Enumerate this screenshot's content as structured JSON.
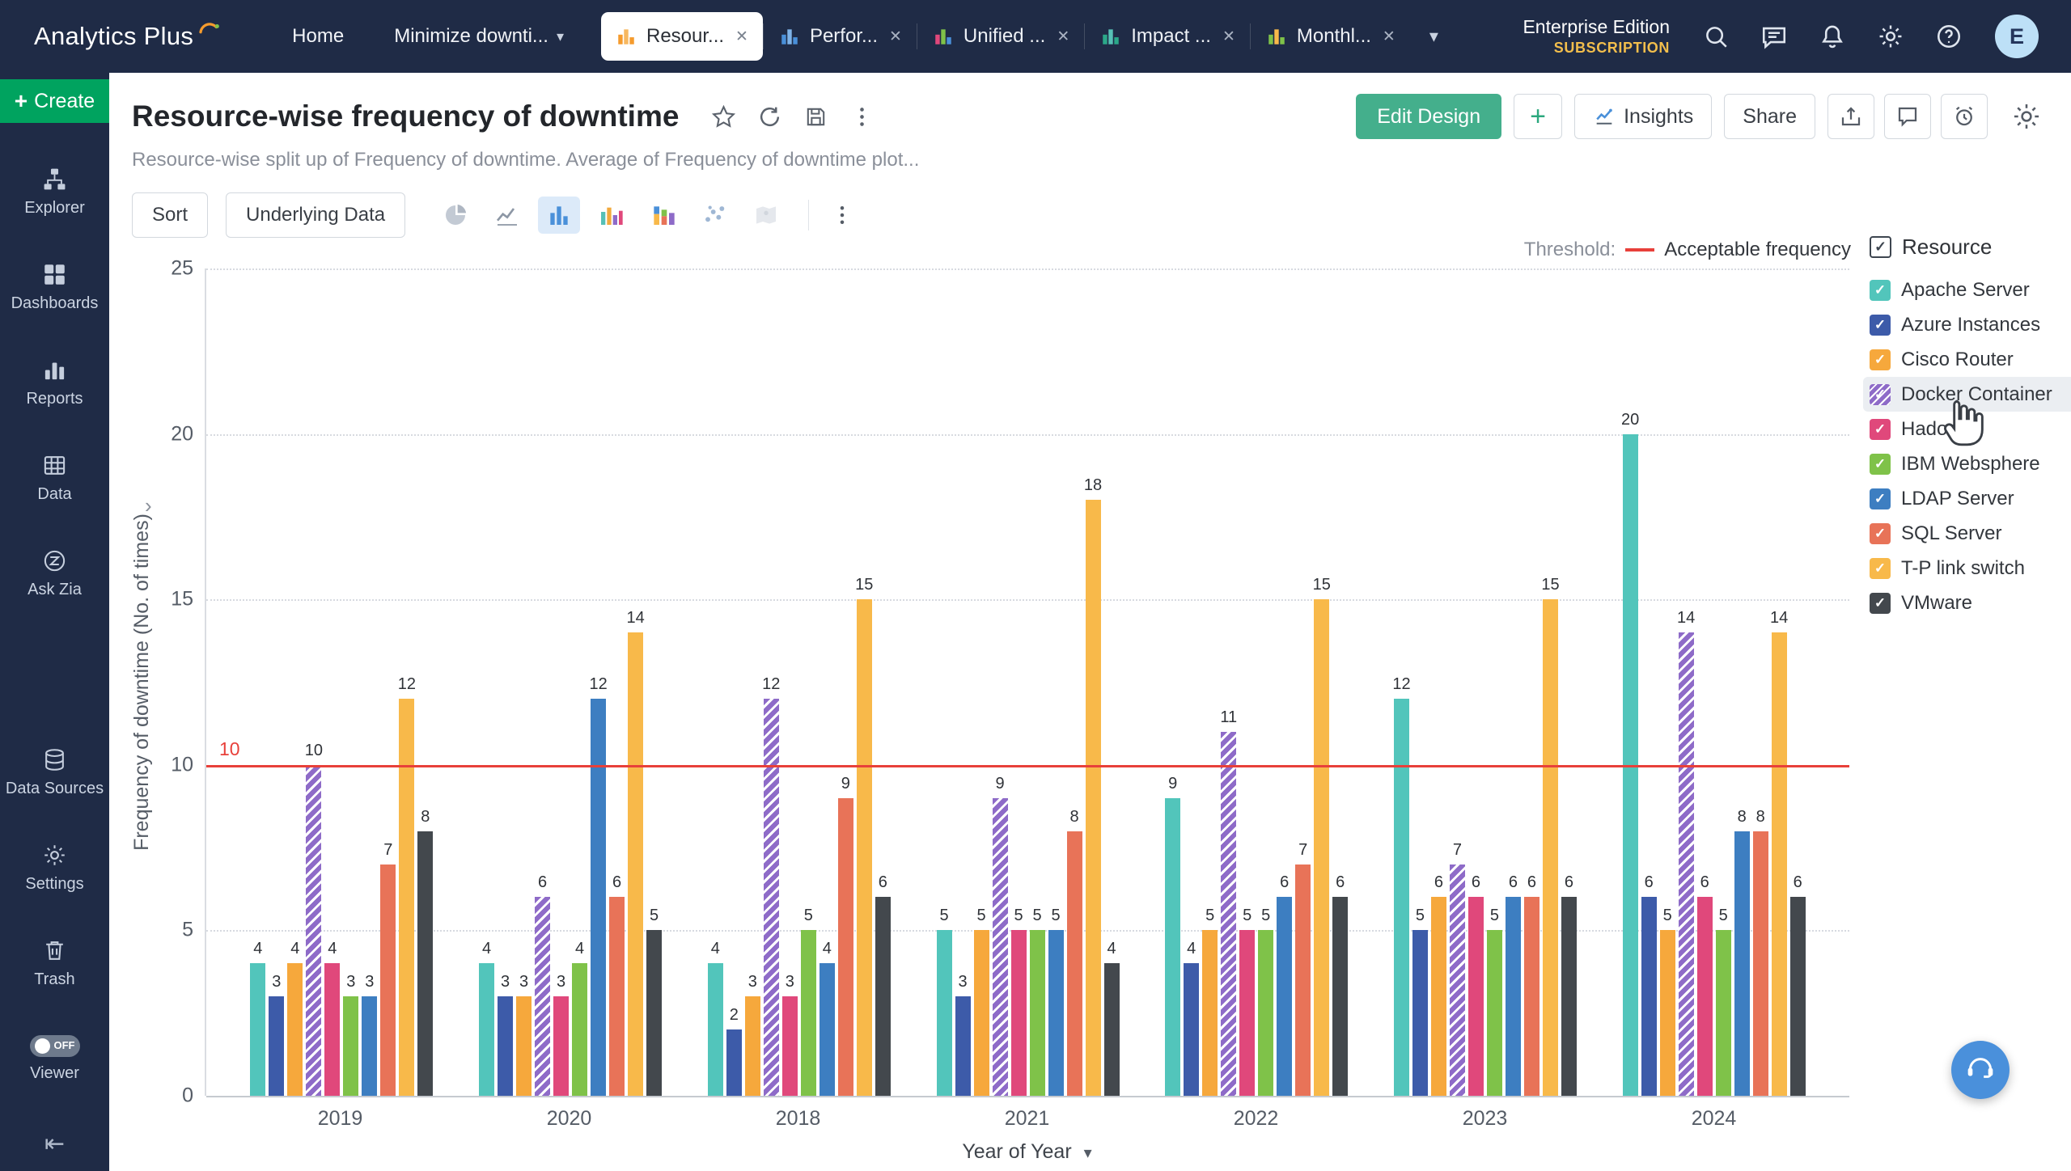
{
  "topnav": {
    "brand": "Analytics Plus",
    "home_label": "Home",
    "workspace_label": "Minimize downti...",
    "tabs": [
      {
        "label": "Resour...",
        "icon_colors": [
          "#F59B2D",
          "#F7B860",
          "#F59B2D"
        ],
        "active": true
      },
      {
        "label": "Perfor...",
        "icon_colors": [
          "#4A90D9",
          "#7FB3E8",
          "#4A90D9"
        ],
        "active": false
      },
      {
        "label": "Unified ...",
        "icon_colors": [
          "#E0487B",
          "#7FC249",
          "#4A90D9"
        ],
        "active": false
      },
      {
        "label": "Impact ...",
        "icon_colors": [
          "#2BA889",
          "#57C0B6",
          "#2BA889"
        ],
        "active": false
      },
      {
        "label": "Monthl...",
        "icon_colors": [
          "#7FC249",
          "#F8B94A",
          "#7FC249"
        ],
        "active": false
      }
    ],
    "edition_line1": "Enterprise Edition",
    "edition_line2": "SUBSCRIPTION",
    "icons": [
      "search",
      "chat",
      "bell",
      "gear",
      "help"
    ],
    "avatar_letter": "E"
  },
  "sidebar": {
    "create_label": "Create",
    "items": [
      {
        "label": "Explorer",
        "icon": "explorer"
      },
      {
        "label": "Dashboards",
        "icon": "dashboards"
      },
      {
        "label": "Reports",
        "icon": "reports"
      },
      {
        "label": "Data",
        "icon": "data"
      },
      {
        "label": "Ask Zia",
        "icon": "ask-zia"
      },
      {
        "label": "Data Sources",
        "icon": "data-sources",
        "gap_before": true
      },
      {
        "label": "Settings",
        "icon": "settings"
      },
      {
        "label": "Trash",
        "icon": "trash"
      },
      {
        "label": "Viewer",
        "icon": "viewer",
        "toggle": "OFF"
      }
    ]
  },
  "header": {
    "title": "Resource-wise frequency of downtime",
    "subtitle": "Resource-wise split up of Frequency of downtime. Average of Frequency of downtime plot...",
    "title_icons": [
      "star",
      "refresh",
      "save",
      "kebab"
    ],
    "edit_design_label": "Edit Design",
    "add_label": "+",
    "insights_label": "Insights",
    "share_label": "Share",
    "action_icons": [
      "export",
      "comment",
      "alarm"
    ]
  },
  "toolbar": {
    "sort_label": "Sort",
    "underlying_data_label": "Underlying Data",
    "chart_types": [
      "pie",
      "line",
      "bar",
      "column",
      "stacked",
      "scatter",
      "map"
    ],
    "active_chart_type": "bar"
  },
  "chart_data": {
    "type": "bar",
    "categories": [
      "2019",
      "2020",
      "2018",
      "2021",
      "2022",
      "2023",
      "2024"
    ],
    "series": [
      {
        "name": "Apache Server",
        "color": "#52C5BB",
        "values": [
          4,
          4,
          4,
          5,
          9,
          12,
          20
        ]
      },
      {
        "name": "Azure Instances",
        "color": "#3D5BA9",
        "values": [
          3,
          3,
          2,
          3,
          4,
          5,
          6
        ]
      },
      {
        "name": "Cisco Router",
        "color": "#F6A83C",
        "values": [
          4,
          3,
          3,
          5,
          5,
          6,
          5
        ]
      },
      {
        "name": "Docker Container",
        "color": "#8E6BC8",
        "hatch": true,
        "values": [
          10,
          6,
          12,
          9,
          11,
          7,
          14
        ]
      },
      {
        "name": "Hadoop",
        "color": "#E0487B",
        "values": [
          4,
          3,
          3,
          5,
          5,
          6,
          6
        ]
      },
      {
        "name": "IBM Websphere",
        "color": "#7FC249",
        "values": [
          3,
          4,
          5,
          5,
          5,
          5,
          5
        ]
      },
      {
        "name": "LDAP Server",
        "color": "#3D7EC1",
        "values": [
          3,
          12,
          4,
          5,
          6,
          6,
          8
        ]
      },
      {
        "name": "SQL Server",
        "color": "#E87358",
        "values": [
          7,
          6,
          9,
          8,
          7,
          6,
          8
        ]
      },
      {
        "name": "T-P link switch",
        "color": "#F8B94A",
        "values": [
          12,
          14,
          15,
          18,
          15,
          15,
          14
        ]
      },
      {
        "name": "VMware",
        "color": "#43484D",
        "values": [
          8,
          5,
          6,
          4,
          6,
          6,
          6
        ]
      }
    ],
    "ylabel": "Frequency of downtime (No. of times)",
    "xlabel": "Year of Year",
    "ylim": [
      0,
      25
    ],
    "yticks": [
      0,
      5,
      10,
      15,
      20,
      25
    ],
    "grid": true,
    "legend_position": "right",
    "legend_title": "Resource",
    "highlighted_legend_item": "Docker Container",
    "threshold": {
      "value": 10,
      "label_prefix": "Threshold:",
      "label": "Acceptable frequency",
      "color": "#E8403A"
    }
  }
}
